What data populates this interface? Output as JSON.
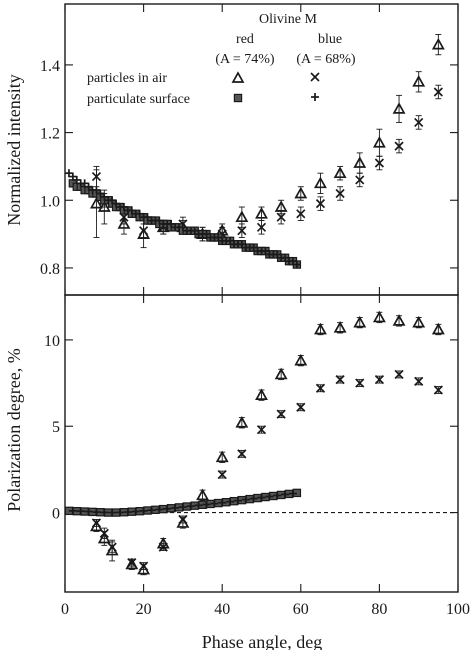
{
  "legend": {
    "header": "Olivine M",
    "col_red": "red",
    "col_blue": "blue",
    "albedo_red": "(A = 74%)",
    "albedo_blue": "(A = 68%)",
    "row_air": "particles in air",
    "row_surface": "particulate surface",
    "placement": "top"
  },
  "chart_data": [
    {
      "type": "scatter",
      "panel": "top",
      "xlabel": "",
      "ylabel": "Normalized intensity",
      "xlim": [
        0,
        100
      ],
      "ylim": [
        0.72,
        1.58
      ],
      "yticks": [
        0.8,
        1.0,
        1.2,
        1.4
      ],
      "xticks": [
        0,
        20,
        40,
        60,
        80,
        100
      ],
      "series": [
        {
          "name": "particles in air red",
          "marker": "triangle",
          "x": [
            8,
            10,
            15,
            20,
            25,
            30,
            35,
            40,
            45,
            50,
            55,
            60,
            65,
            70,
            75,
            80,
            85,
            90,
            95
          ],
          "y": [
            0.99,
            0.98,
            0.93,
            0.9,
            0.92,
            0.92,
            0.9,
            0.91,
            0.95,
            0.96,
            0.98,
            1.02,
            1.05,
            1.08,
            1.11,
            1.17,
            1.27,
            1.35,
            1.46
          ],
          "err": [
            0.1,
            0.05,
            0.03,
            0.04,
            0.02,
            0.02,
            0.02,
            0.02,
            0.03,
            0.02,
            0.02,
            0.02,
            0.03,
            0.02,
            0.03,
            0.04,
            0.04,
            0.03,
            0.03
          ]
        },
        {
          "name": "particles in air blue",
          "marker": "x",
          "x": [
            8,
            10,
            15,
            20,
            25,
            30,
            35,
            40,
            45,
            50,
            55,
            60,
            65,
            70,
            75,
            80,
            85,
            90,
            95
          ],
          "y": [
            1.07,
            1.0,
            0.95,
            0.91,
            0.92,
            0.93,
            0.9,
            0.9,
            0.91,
            0.92,
            0.95,
            0.96,
            0.99,
            1.02,
            1.06,
            1.11,
            1.16,
            1.23,
            1.32
          ],
          "err": [
            0.03,
            0.02,
            0.02,
            0.02,
            0.02,
            0.02,
            0.02,
            0.02,
            0.02,
            0.02,
            0.02,
            0.02,
            0.02,
            0.02,
            0.02,
            0.02,
            0.02,
            0.02,
            0.02
          ]
        },
        {
          "name": "particulate surface red",
          "marker": "square",
          "x": [
            2,
            3,
            4,
            5,
            6,
            7,
            8,
            9,
            10,
            11,
            12,
            13,
            14,
            15,
            16,
            17,
            18,
            19,
            20,
            21,
            22,
            23,
            24,
            25,
            26,
            27,
            28,
            29,
            30,
            31,
            32,
            33,
            34,
            35,
            36,
            37,
            38,
            39,
            40,
            41,
            42,
            43,
            44,
            45,
            46,
            47,
            48,
            49,
            50,
            51,
            52,
            53,
            54,
            55,
            56,
            57,
            58,
            59
          ],
          "y": [
            1.05,
            1.04,
            1.04,
            1.03,
            1.03,
            1.02,
            1.02,
            1.01,
            1.0,
            1.0,
            0.99,
            0.98,
            0.98,
            0.97,
            0.97,
            0.96,
            0.96,
            0.95,
            0.95,
            0.94,
            0.94,
            0.94,
            0.93,
            0.93,
            0.93,
            0.92,
            0.92,
            0.92,
            0.91,
            0.91,
            0.91,
            0.91,
            0.9,
            0.9,
            0.9,
            0.89,
            0.89,
            0.89,
            0.88,
            0.88,
            0.88,
            0.87,
            0.87,
            0.87,
            0.86,
            0.86,
            0.86,
            0.85,
            0.85,
            0.85,
            0.84,
            0.84,
            0.84,
            0.83,
            0.83,
            0.82,
            0.82,
            0.81
          ]
        },
        {
          "name": "particulate surface blue",
          "marker": "plus",
          "x": [
            1,
            2,
            3,
            4,
            5,
            6,
            7,
            8,
            9,
            10,
            11,
            12,
            13,
            14,
            15,
            16,
            17,
            18,
            19,
            20,
            21,
            22,
            23,
            24,
            25,
            26,
            27,
            28,
            29,
            30,
            31,
            32,
            33,
            34,
            35,
            36,
            37,
            38,
            39,
            40,
            41,
            42,
            43,
            44,
            45,
            46,
            47,
            48,
            49,
            50,
            51,
            52,
            53,
            54,
            55,
            56,
            57,
            58,
            59
          ],
          "y": [
            1.08,
            1.07,
            1.06,
            1.05,
            1.05,
            1.04,
            1.03,
            1.03,
            1.02,
            1.01,
            1.0,
            1.0,
            0.99,
            0.98,
            0.98,
            0.97,
            0.97,
            0.96,
            0.96,
            0.95,
            0.95,
            0.94,
            0.94,
            0.94,
            0.93,
            0.93,
            0.93,
            0.92,
            0.92,
            0.92,
            0.91,
            0.91,
            0.91,
            0.9,
            0.9,
            0.9,
            0.89,
            0.89,
            0.89,
            0.88,
            0.88,
            0.88,
            0.87,
            0.87,
            0.87,
            0.86,
            0.86,
            0.86,
            0.85,
            0.85,
            0.85,
            0.84,
            0.84,
            0.84,
            0.83,
            0.83,
            0.82,
            0.82,
            0.81
          ]
        }
      ]
    },
    {
      "type": "scatter",
      "panel": "bottom",
      "xlabel": "Phase angle, deg",
      "ylabel": "Polarization degree, %",
      "xlim": [
        0,
        100
      ],
      "ylim": [
        -4.6,
        12.6
      ],
      "yticks": [
        0,
        5,
        10
      ],
      "xticks": [
        0,
        20,
        40,
        60,
        80,
        100
      ],
      "xtick_labels": [
        "0",
        "20",
        "40",
        "60",
        "80",
        "100"
      ],
      "reference_line": {
        "y": 0,
        "style": "dashed"
      },
      "series": [
        {
          "name": "particles in air red",
          "marker": "triangle",
          "x": [
            8,
            10,
            12,
            17,
            20,
            25,
            30,
            35,
            40,
            45,
            50,
            55,
            60,
            65,
            70,
            75,
            80,
            85,
            90,
            95
          ],
          "y": [
            -0.8,
            -1.5,
            -2.2,
            -3.0,
            -3.3,
            -1.8,
            -0.6,
            1.0,
            3.2,
            5.2,
            6.8,
            8.0,
            8.8,
            10.6,
            10.7,
            11.0,
            11.3,
            11.1,
            11.0,
            10.6
          ],
          "err": [
            0.3,
            0.4,
            0.6,
            0.3,
            0.3,
            0.3,
            0.3,
            0.3,
            0.3,
            0.3,
            0.3,
            0.3,
            0.3,
            0.3,
            0.3,
            0.3,
            0.3,
            0.3,
            0.3,
            0.3
          ]
        },
        {
          "name": "particles in air blue",
          "marker": "x",
          "x": [
            8,
            10,
            12,
            17,
            20,
            25,
            30,
            40,
            45,
            50,
            55,
            60,
            65,
            70,
            75,
            80,
            85,
            90,
            95
          ],
          "y": [
            -0.6,
            -1.2,
            -2.0,
            -2.9,
            -3.1,
            -2.0,
            -0.4,
            2.2,
            3.4,
            4.8,
            5.7,
            6.1,
            7.2,
            7.7,
            7.5,
            7.7,
            8.0,
            7.6,
            7.1
          ],
          "err": [
            0.2,
            0.3,
            0.3,
            0.2,
            0.2,
            0.2,
            0.2,
            0.2,
            0.2,
            0.2,
            0.2,
            0.2,
            0.2,
            0.2,
            0.2,
            0.2,
            0.2,
            0.2,
            0.2
          ]
        },
        {
          "name": "particulate surface red",
          "marker": "square",
          "x": [
            1,
            3,
            5,
            7,
            9,
            11,
            13,
            15,
            17,
            19,
            21,
            23,
            25,
            27,
            29,
            31,
            33,
            35,
            37,
            39,
            41,
            43,
            45,
            47,
            49,
            51,
            53,
            55,
            57,
            59
          ],
          "y": [
            0.1,
            0.08,
            0.06,
            0.04,
            0.02,
            0.0,
            0.0,
            0.02,
            0.05,
            0.08,
            0.12,
            0.16,
            0.2,
            0.25,
            0.3,
            0.35,
            0.4,
            0.45,
            0.5,
            0.55,
            0.6,
            0.66,
            0.72,
            0.78,
            0.84,
            0.9,
            0.96,
            1.02,
            1.08,
            1.14
          ]
        },
        {
          "name": "particulate surface blue",
          "marker": "plus",
          "x": [
            2,
            4,
            6,
            8,
            10,
            12,
            14,
            16,
            18,
            20,
            22,
            24,
            26,
            28,
            30,
            32,
            34,
            36,
            38,
            40,
            42,
            44,
            46,
            48,
            50,
            52,
            54,
            56,
            58
          ],
          "y": [
            0.1,
            0.08,
            0.06,
            0.03,
            0.01,
            0.0,
            0.01,
            0.03,
            0.06,
            0.1,
            0.14,
            0.18,
            0.22,
            0.27,
            0.32,
            0.37,
            0.42,
            0.47,
            0.52,
            0.57,
            0.63,
            0.69,
            0.75,
            0.81,
            0.87,
            0.93,
            0.99,
            1.05,
            1.1
          ]
        }
      ]
    }
  ]
}
